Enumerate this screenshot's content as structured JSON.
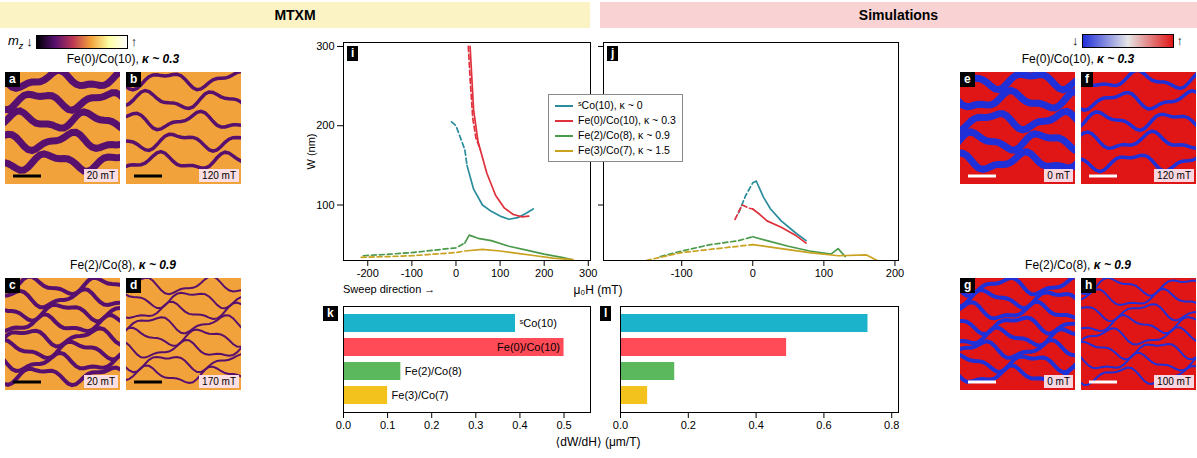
{
  "headers": [
    {
      "text": "MTXM",
      "color": "#fbf3c4"
    },
    {
      "text": "Simulations",
      "color": "#f9d3d3"
    }
  ],
  "colorbars": [
    {
      "label": "m",
      "subscript": "z",
      "low": "↓",
      "high": "↑",
      "colors": [
        "#000004",
        "#57106e",
        "#bc3754",
        "#f2a23a",
        "#fcffa4",
        "#ffffff"
      ]
    },
    {
      "low": "↓",
      "high": "↑",
      "colors": [
        "#2030d8",
        "#e6e6e6",
        "#e01515"
      ]
    }
  ],
  "image_groups": [
    {
      "section": "MTXM",
      "material": "Fe(0)/Co(10),",
      "kappa": "κ ~ 0.3",
      "panels": [
        {
          "letter": "a",
          "field": "20 mT"
        },
        {
          "letter": "b",
          "field": "120 mT"
        }
      ]
    },
    {
      "section": "MTXM",
      "material": "Fe(2)/Co(8),",
      "kappa": "κ ~ 0.9",
      "panels": [
        {
          "letter": "c",
          "field": "20 mT"
        },
        {
          "letter": "d",
          "field": "170 mT"
        }
      ]
    },
    {
      "section": "Simulations",
      "material": "Fe(0)/Co(10),",
      "kappa": "κ ~ 0.3",
      "panels": [
        {
          "letter": "e",
          "field": "0 mT"
        },
        {
          "letter": "f",
          "field": "120 mT"
        }
      ]
    },
    {
      "section": "Simulations",
      "material": "Fe(2)/Co(8),",
      "kappa": "κ ~ 0.9",
      "panels": [
        {
          "letter": "g",
          "field": "0 mT"
        },
        {
          "letter": "h",
          "field": "100 mT"
        }
      ]
    }
  ],
  "chart_data": [
    {
      "type": "line",
      "letter": "i",
      "ylabel": "W (nm)",
      "annotation": "Sweep direction →",
      "xlim": [
        -255,
        305
      ],
      "xticks": [
        -200,
        -100,
        0,
        100,
        200,
        300
      ],
      "ylim": [
        30,
        305
      ],
      "yticks": [
        100,
        200,
        300
      ],
      "legend": "top-right",
      "series": [
        {
          "name": "ˢCo(10), κ ~ 0",
          "color": "#2a8c9c",
          "line_style": "solid",
          "x": [
            25,
            40,
            60,
            80,
            100,
            120,
            140,
            160,
            175
          ],
          "values": [
            150,
            120,
            100,
            92,
            86,
            82,
            84,
            90,
            95
          ]
        },
        {
          "name": "ˢCo(10), κ ~ 0",
          "color": "#2a8c9c",
          "line_style": "dashed",
          "x": [
            -10,
            0,
            10,
            20,
            25
          ],
          "values": [
            205,
            200,
            185,
            170,
            150
          ]
        },
        {
          "name": "Fe(0)/Co(10), κ ~ 0.3",
          "color": "#e0303c",
          "line_style": "solid",
          "x": [
            32,
            40,
            50,
            70,
            90,
            110,
            130,
            150,
            165
          ],
          "values": [
            300,
            220,
            180,
            140,
            112,
            96,
            88,
            85,
            86
          ]
        },
        {
          "name": "Fe(0)/Co(10), κ ~ 0.3",
          "color": "#e0303c",
          "line_style": "dashed",
          "x": [
            28,
            32,
            38,
            45,
            55
          ],
          "values": [
            300,
            260,
            210,
            185,
            170
          ]
        },
        {
          "name": "Fe(2)/Co(8), κ ~ 0.9",
          "color": "#4b9a4b",
          "line_style": "solid",
          "x": [
            20,
            30,
            50,
            80,
            120,
            160,
            200,
            240,
            265
          ],
          "values": [
            52,
            62,
            58,
            55,
            48,
            43,
            38,
            34,
            31
          ]
        },
        {
          "name": "Fe(2)/Co(8), κ ~ 0.9",
          "color": "#4b9a4b",
          "line_style": "dashed",
          "x": [
            -210,
            -150,
            -100,
            -50,
            0,
            20
          ],
          "values": [
            36,
            38,
            40,
            43,
            46,
            52
          ]
        },
        {
          "name": "Fe(3)/Co(7), κ ~ 1.5",
          "color": "#c9a21f",
          "line_style": "solid",
          "x": [
            20,
            60,
            100,
            140,
            180,
            220,
            265
          ],
          "values": [
            42,
            44,
            42,
            39,
            36,
            33,
            31
          ]
        },
        {
          "name": "Fe(3)/Co(7), κ ~ 1.5",
          "color": "#c9a21f",
          "line_style": "dashed",
          "x": [
            -215,
            -150,
            -100,
            -50,
            0,
            20
          ],
          "values": [
            34,
            35,
            36,
            38,
            40,
            42
          ]
        }
      ]
    },
    {
      "type": "line",
      "letter": "j",
      "xlabel": "μ₀H (mT)",
      "xlim": [
        -210,
        205
      ],
      "xticks": [
        -100,
        0,
        100,
        200
      ],
      "ylim": [
        30,
        305
      ],
      "yticks": [
        100,
        200,
        300
      ],
      "tick_labels": "x",
      "series": [
        {
          "name": "ˢCo(10), κ ~ 0",
          "color": "#2a8c9c",
          "line_style": "solid",
          "x": [
            5,
            15,
            25,
            40,
            60,
            75
          ],
          "values": [
            130,
            110,
            95,
            80,
            65,
            55
          ]
        },
        {
          "name": "ˢCo(10), κ ~ 0",
          "color": "#2a8c9c",
          "line_style": "dashed",
          "x": [
            -20,
            -10,
            0,
            5
          ],
          "values": [
            90,
            112,
            128,
            130
          ]
        },
        {
          "name": "Fe(0)/Co(10), κ ~ 0.3",
          "color": "#e0303c",
          "line_style": "solid",
          "x": [
            0,
            10,
            20,
            40,
            60,
            75
          ],
          "values": [
            95,
            88,
            80,
            72,
            62,
            52
          ]
        },
        {
          "name": "Fe(0)/Co(10), κ ~ 0.3",
          "color": "#e0303c",
          "line_style": "dashed",
          "x": [
            -25,
            -15,
            -5,
            0
          ],
          "values": [
            82,
            100,
            96,
            95
          ]
        },
        {
          "name": "Fe(2)/Co(8), κ ~ 0.9",
          "color": "#4b9a4b",
          "line_style": "solid",
          "x": [
            0,
            20,
            50,
            80,
            110,
            120,
            130
          ],
          "values": [
            60,
            55,
            48,
            42,
            38,
            45,
            35
          ]
        },
        {
          "name": "Fe(2)/Co(8), κ ~ 0.9",
          "color": "#4b9a4b",
          "line_style": "dashed",
          "x": [
            -130,
            -100,
            -60,
            -20,
            0
          ],
          "values": [
            35,
            42,
            50,
            55,
            60
          ]
        },
        {
          "name": "Fe(3)/Co(7), κ ~ 1.5",
          "color": "#c9a21f",
          "line_style": "solid",
          "x": [
            0,
            40,
            80,
            120,
            160,
            175
          ],
          "values": [
            50,
            45,
            40,
            36,
            37,
            30
          ]
        },
        {
          "name": "Fe(3)/Co(7), κ ~ 1.5",
          "color": "#c9a21f",
          "line_style": "dashed",
          "x": [
            -150,
            -100,
            -50,
            0
          ],
          "values": [
            30,
            40,
            45,
            50
          ]
        }
      ]
    },
    {
      "type": "bar",
      "letter": "k",
      "orientation": "horizontal",
      "tick_labels": "x",
      "categories": [
        "ˢCo(10)",
        "Fe(0)/Co(10)",
        "Fe(2)/Co(8)",
        "Fe(3)/Co(7)"
      ],
      "values": [
        0.39,
        0.5,
        0.13,
        0.1
      ],
      "colors": [
        "#1bb3cc",
        "#ff4b57",
        "#5cb85c",
        "#f4c21c"
      ],
      "xlim": [
        0,
        0.56
      ],
      "xticks": [
        {
          "value": 0,
          "label": "0.0"
        },
        0.1,
        0.2,
        0.3,
        0.4,
        0.5
      ]
    },
    {
      "type": "bar",
      "letter": "l",
      "orientation": "horizontal",
      "tick_labels": "x",
      "xlabel": "⟨dW/dH⟩ (μm/T)",
      "categories": [
        null,
        null,
        null,
        null
      ],
      "values": [
        0.73,
        0.49,
        0.16,
        0.08
      ],
      "colors": [
        "#1bb3cc",
        "#ff4b57",
        "#5cb85c",
        "#f4c21c"
      ],
      "xlim": [
        0,
        0.82
      ],
      "xticks": [
        {
          "value": 0,
          "label": "0.0"
        },
        0.2,
        0.4,
        0.6,
        0.8
      ]
    }
  ]
}
